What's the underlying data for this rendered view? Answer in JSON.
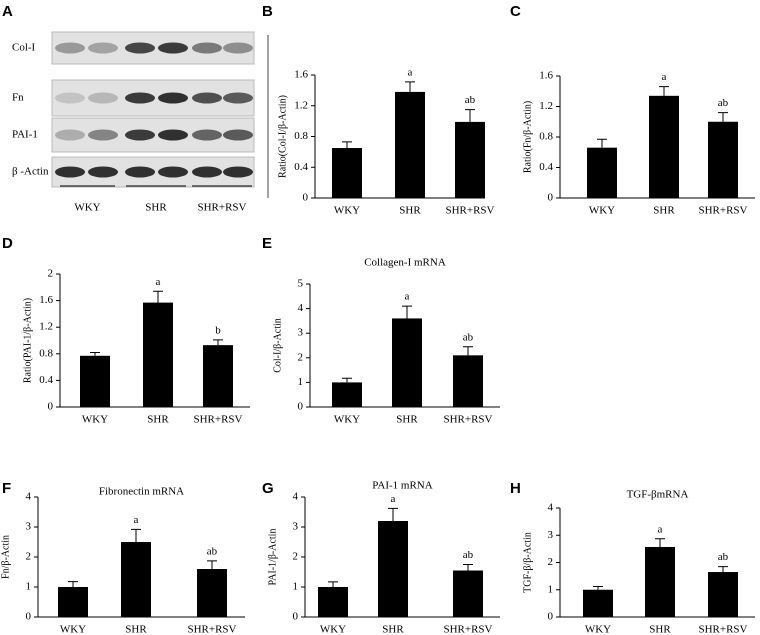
{
  "blot": {
    "label": "A",
    "rows": [
      "Col-I",
      "Fn",
      "PAI-1",
      "β -Actin"
    ],
    "groups": [
      "WKY",
      "SHR",
      "SHR+RSV"
    ]
  },
  "chart_data": [
    {
      "type": "bar",
      "panel": "B",
      "ylabel": "Ratio(Col-I/β-Actin)",
      "categories": [
        "WKY",
        "SHR",
        "SHR+RSV"
      ],
      "values": [
        0.65,
        1.38,
        0.99
      ],
      "errors": [
        0.08,
        0.13,
        0.16
      ],
      "annotations": [
        {
          "index": 1,
          "text": "a"
        },
        {
          "index": 2,
          "text": "ab"
        }
      ],
      "color": "#000000",
      "ylim": [
        0,
        1.6
      ],
      "yticks": [
        0,
        0.4,
        0.8,
        1.2,
        1.6
      ]
    },
    {
      "type": "bar",
      "panel": "C",
      "ylabel": "Ratio(Fn/β-Actin)",
      "categories": [
        "WKY",
        "SHR",
        "SHR+RSV"
      ],
      "values": [
        0.66,
        1.34,
        1.0
      ],
      "errors": [
        0.11,
        0.12,
        0.12
      ],
      "annotations": [
        {
          "index": 1,
          "text": "a"
        },
        {
          "index": 2,
          "text": "ab"
        }
      ],
      "color": "#000000",
      "ylim": [
        0,
        1.6
      ],
      "yticks": [
        0,
        0.4,
        0.8,
        1.2,
        1.6
      ]
    },
    {
      "type": "bar",
      "panel": "D",
      "ylabel": "Ratio(PAI-1/β-Actin)",
      "categories": [
        "WKY",
        "SHR",
        "SHR+RSV"
      ],
      "values": [
        0.77,
        1.57,
        0.93
      ],
      "errors": [
        0.05,
        0.17,
        0.08
      ],
      "annotations": [
        {
          "index": 1,
          "text": "a"
        },
        {
          "index": 2,
          "text": "b"
        }
      ],
      "color": "#000000",
      "ylim": [
        0,
        2
      ],
      "yticks": [
        0,
        0.4,
        0.8,
        1.2,
        1.6,
        2
      ]
    },
    {
      "type": "bar",
      "panel": "E",
      "title": "Collagen-I mRNA",
      "ylabel": "Col-I/β-Actin",
      "categories": [
        "WKY",
        "SHR",
        "SHR+RSV"
      ],
      "values": [
        1.0,
        3.6,
        2.1
      ],
      "errors": [
        0.17,
        0.5,
        0.35
      ],
      "annotations": [
        {
          "index": 1,
          "text": "a"
        },
        {
          "index": 2,
          "text": "ab"
        }
      ],
      "color": "#000000",
      "ylim": [
        0,
        5
      ],
      "yticks": [
        0,
        1,
        2,
        3,
        4,
        5
      ]
    },
    {
      "type": "bar",
      "panel": "F",
      "title": "Fibronectin mRNA",
      "ylabel": "Fn/β-Actin",
      "categories": [
        "WKY",
        "SHR",
        "SHR+RSV"
      ],
      "values": [
        1.0,
        2.5,
        1.6
      ],
      "errors": [
        0.18,
        0.42,
        0.27
      ],
      "annotations": [
        {
          "index": 1,
          "text": "a"
        },
        {
          "index": 2,
          "text": "ab"
        }
      ],
      "color": "#000000",
      "ylim": [
        0,
        4
      ],
      "yticks": [
        0,
        1,
        2,
        3,
        4
      ]
    },
    {
      "type": "bar",
      "panel": "G",
      "title": "PAI-1 mRNA",
      "ylabel": "PAI-1/β-Actin",
      "categories": [
        "WKY",
        "SHR",
        "SHR+RSV"
      ],
      "values": [
        1.0,
        3.2,
        1.55
      ],
      "errors": [
        0.17,
        0.42,
        0.2
      ],
      "annotations": [
        {
          "index": 1,
          "text": "a"
        },
        {
          "index": 2,
          "text": "ab"
        }
      ],
      "color": "#000000",
      "ylim": [
        0,
        4
      ],
      "yticks": [
        0,
        1,
        2,
        3,
        4
      ]
    },
    {
      "type": "bar",
      "panel": "H",
      "title": "TGF-βmRNA",
      "ylabel": "TGF-β/β-Actin",
      "categories": [
        "WKY",
        "SHR",
        "SHR+RSV"
      ],
      "values": [
        1.0,
        2.57,
        1.65
      ],
      "errors": [
        0.12,
        0.3,
        0.2
      ],
      "annotations": [
        {
          "index": 1,
          "text": "a"
        },
        {
          "index": 2,
          "text": "ab"
        }
      ],
      "color": "#000000",
      "ylim": [
        0,
        4
      ],
      "yticks": [
        0,
        1,
        2,
        3,
        4
      ]
    }
  ]
}
